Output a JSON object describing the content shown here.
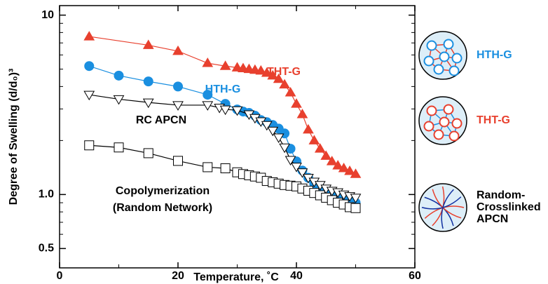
{
  "chart_data": {
    "type": "line",
    "log_y": true,
    "xlabel": "Temperature, ˚C",
    "ylabel": "Degree of Swelling (d/d₀)³",
    "xlim": [
      0,
      60
    ],
    "xticks": [
      0,
      20,
      40,
      60
    ],
    "minor_xticks": [
      10,
      30,
      50
    ],
    "ylim": [
      0.39,
      11.3
    ],
    "yticks": [
      {
        "value": 10,
        "label": "10"
      },
      {
        "value": 1,
        "label": "1.0"
      },
      {
        "value": 0.5,
        "label": "0.5"
      }
    ],
    "minor_yticks": [
      0.6,
      0.7,
      0.8,
      0.9,
      2,
      3,
      4,
      5,
      6,
      7,
      8,
      9
    ],
    "series": [
      {
        "name": "THT-G",
        "color": "#e8402e",
        "marker": "triangle-up",
        "x": [
          5,
          15,
          20,
          25,
          28,
          30,
          31,
          32,
          33,
          34,
          35,
          36,
          37,
          38,
          39,
          40,
          41,
          42,
          43,
          44,
          45,
          46,
          47,
          48,
          49,
          50
        ],
        "values": [
          7.6,
          6.8,
          6.3,
          5.4,
          5.2,
          5.1,
          5.05,
          5.0,
          4.95,
          4.9,
          4.76,
          4.6,
          4.4,
          4.1,
          3.7,
          3.2,
          2.8,
          2.3,
          2.0,
          1.8,
          1.64,
          1.53,
          1.45,
          1.4,
          1.35,
          1.3
        ]
      },
      {
        "name": "HTH-G",
        "color": "#1a8fe0",
        "marker": "circle",
        "x": [
          5,
          10,
          15,
          20,
          25,
          28,
          30,
          31,
          32,
          33,
          34,
          35,
          36,
          37,
          38,
          39,
          40,
          41,
          42,
          43,
          44,
          45,
          46,
          47,
          48,
          49,
          50
        ],
        "values": [
          5.2,
          4.6,
          4.27,
          4.0,
          3.6,
          3.2,
          2.98,
          2.9,
          2.85,
          2.75,
          2.6,
          2.53,
          2.44,
          2.33,
          2.19,
          1.8,
          1.53,
          1.36,
          1.24,
          1.15,
          1.09,
          1.05,
          1.0,
          0.97,
          0.95,
          0.92,
          0.9
        ]
      },
      {
        "name": "RC APCN",
        "color": "#000000",
        "marker": "triangle-down",
        "x": [
          5,
          10,
          15,
          20,
          25,
          27,
          28,
          30,
          32,
          33,
          34,
          35,
          36,
          37,
          38,
          39,
          40,
          41,
          42,
          43,
          44,
          45,
          46,
          47,
          48,
          49,
          50
        ],
        "values": [
          3.6,
          3.4,
          3.26,
          3.15,
          3.15,
          3.05,
          2.98,
          2.95,
          2.8,
          2.67,
          2.56,
          2.44,
          2.27,
          2.08,
          1.83,
          1.56,
          1.43,
          1.33,
          1.24,
          1.18,
          1.13,
          1.08,
          1.05,
          1.03,
          1.0,
          0.98,
          0.96
        ]
      },
      {
        "label": [
          "Copolymerization",
          "(Random Network)"
        ],
        "color": "#000000",
        "marker": "square",
        "x": [
          5,
          10,
          15,
          20,
          25,
          28,
          30,
          31,
          32,
          33,
          34,
          35,
          36,
          37,
          38,
          39,
          40,
          41,
          42,
          43,
          44,
          45,
          46,
          47,
          48,
          49,
          50
        ],
        "values": [
          1.88,
          1.83,
          1.7,
          1.54,
          1.42,
          1.4,
          1.33,
          1.3,
          1.28,
          1.26,
          1.24,
          1.19,
          1.17,
          1.15,
          1.13,
          1.12,
          1.11,
          1.08,
          1.05,
          1.02,
          0.99,
          0.96,
          0.93,
          0.9,
          0.88,
          0.85,
          0.84
        ]
      }
    ],
    "schematic": [
      {
        "label": [
          "HTH-G"
        ],
        "color": "#1a8fe0"
      },
      {
        "label": [
          "THT-G"
        ],
        "color": "#e8402e"
      },
      {
        "label": [
          "Random-",
          "Crosslinked",
          "APCN"
        ],
        "color": "#000000"
      }
    ]
  }
}
